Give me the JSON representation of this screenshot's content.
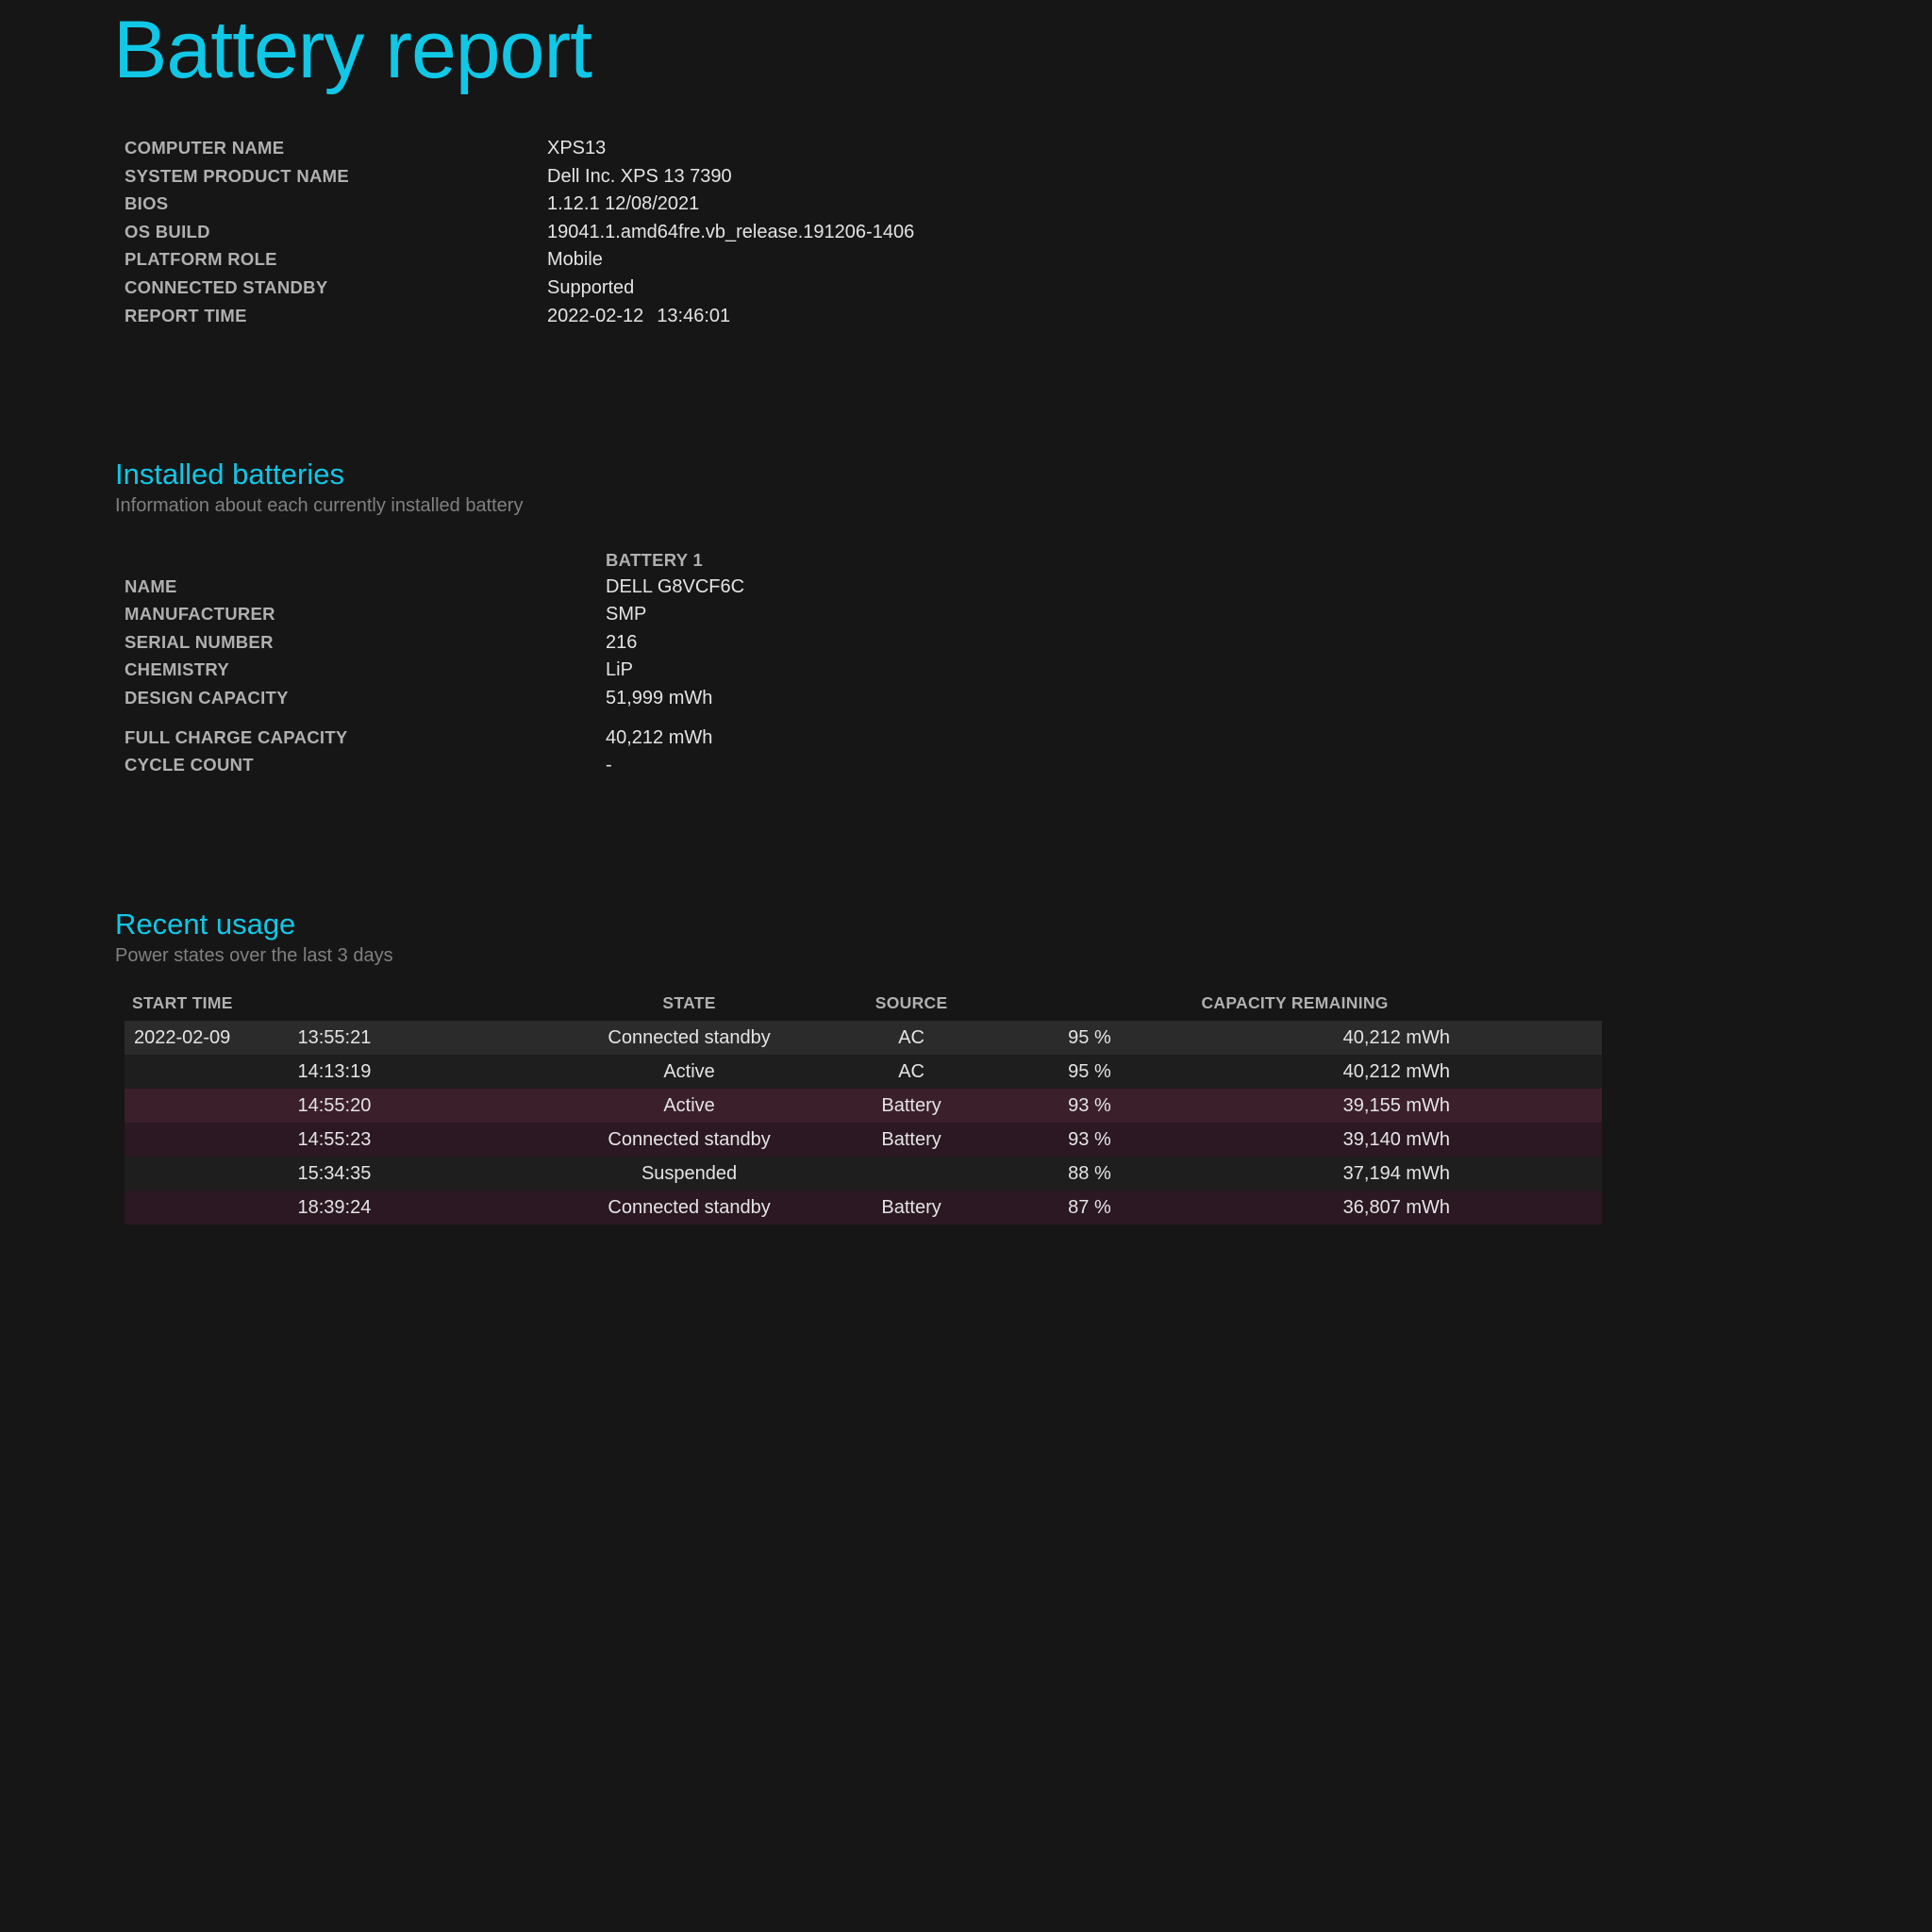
{
  "title": "Battery report",
  "system_info": {
    "rows": [
      {
        "label": "COMPUTER NAME",
        "value": "XPS13"
      },
      {
        "label": "SYSTEM PRODUCT NAME",
        "value": "Dell Inc. XPS 13 7390"
      },
      {
        "label": "BIOS",
        "value": "1.12.1 12/08/2021"
      },
      {
        "label": "OS BUILD",
        "value": "19041.1.amd64fre.vb_release.191206-1406"
      },
      {
        "label": "PLATFORM ROLE",
        "value": "Mobile"
      },
      {
        "label": "CONNECTED STANDBY",
        "value": "Supported"
      }
    ],
    "report_time_label": "REPORT TIME",
    "report_date": "2022-02-12",
    "report_time": "13:46:01"
  },
  "installed": {
    "heading": "Installed batteries",
    "subtitle": "Information about each currently installed battery",
    "header": "BATTERY 1",
    "rows_a": [
      {
        "label": "NAME",
        "value": "DELL G8VCF6C"
      },
      {
        "label": "MANUFACTURER",
        "value": "SMP"
      },
      {
        "label": "SERIAL NUMBER",
        "value": "216"
      },
      {
        "label": "CHEMISTRY",
        "value": "LiP"
      },
      {
        "label": "DESIGN CAPACITY",
        "value": "51,999 mWh"
      }
    ],
    "rows_b": [
      {
        "label": "FULL CHARGE CAPACITY",
        "value": "40,212 mWh"
      },
      {
        "label": "CYCLE COUNT",
        "value": "-"
      }
    ]
  },
  "recent": {
    "heading": "Recent usage",
    "subtitle": "Power states over the last 3 days",
    "columns": {
      "start": "START TIME",
      "state": "STATE",
      "source": "SOURCE",
      "capacity": "CAPACITY REMAINING"
    },
    "rows": [
      {
        "date": "2022-02-09",
        "time": "13:55:21",
        "state": "Connected standby",
        "source": "AC",
        "pct": "95 %",
        "mwh": "40,212 mWh",
        "kind": "ac",
        "stripe": "even"
      },
      {
        "date": "",
        "time": "14:13:19",
        "state": "Active",
        "source": "AC",
        "pct": "95 %",
        "mwh": "40,212 mWh",
        "kind": "ac",
        "stripe": "odd"
      },
      {
        "date": "",
        "time": "14:55:20",
        "state": "Active",
        "source": "Battery",
        "pct": "93 %",
        "mwh": "39,155 mWh",
        "kind": "batt",
        "stripe": "even"
      },
      {
        "date": "",
        "time": "14:55:23",
        "state": "Connected standby",
        "source": "Battery",
        "pct": "93 %",
        "mwh": "39,140 mWh",
        "kind": "batt",
        "stripe": "odd"
      },
      {
        "date": "",
        "time": "15:34:35",
        "state": "Suspended",
        "source": "",
        "pct": "88 %",
        "mwh": "37,194 mWh",
        "kind": "ac",
        "stripe": "odd"
      },
      {
        "date": "",
        "time": "18:39:24",
        "state": "Connected standby",
        "source": "Battery",
        "pct": "87 %",
        "mwh": "36,807 mWh",
        "kind": "batt",
        "stripe": "odd"
      }
    ]
  }
}
